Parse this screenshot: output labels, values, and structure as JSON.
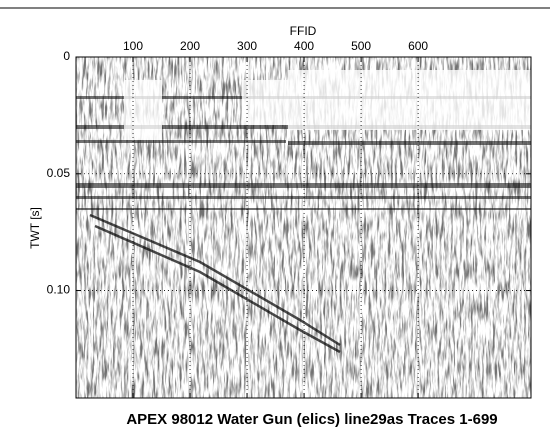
{
  "chart_data": {
    "type": "seismic",
    "title": "APEX 98012 Water Gun (elics) line29as Traces 1-699",
    "xlabel": "FFID",
    "ylabel": "TWT [s]",
    "xlim": [
      0,
      798
    ],
    "xticks": [
      100,
      200,
      300,
      400,
      500,
      600
    ],
    "ylim": [
      0,
      0.146
    ],
    "yticks": [
      0,
      0.05,
      {
        "value": 0.1,
        "label": "0.10"
      }
    ],
    "y_inverted": true,
    "x_axis_position": "top",
    "grid": true
  }
}
